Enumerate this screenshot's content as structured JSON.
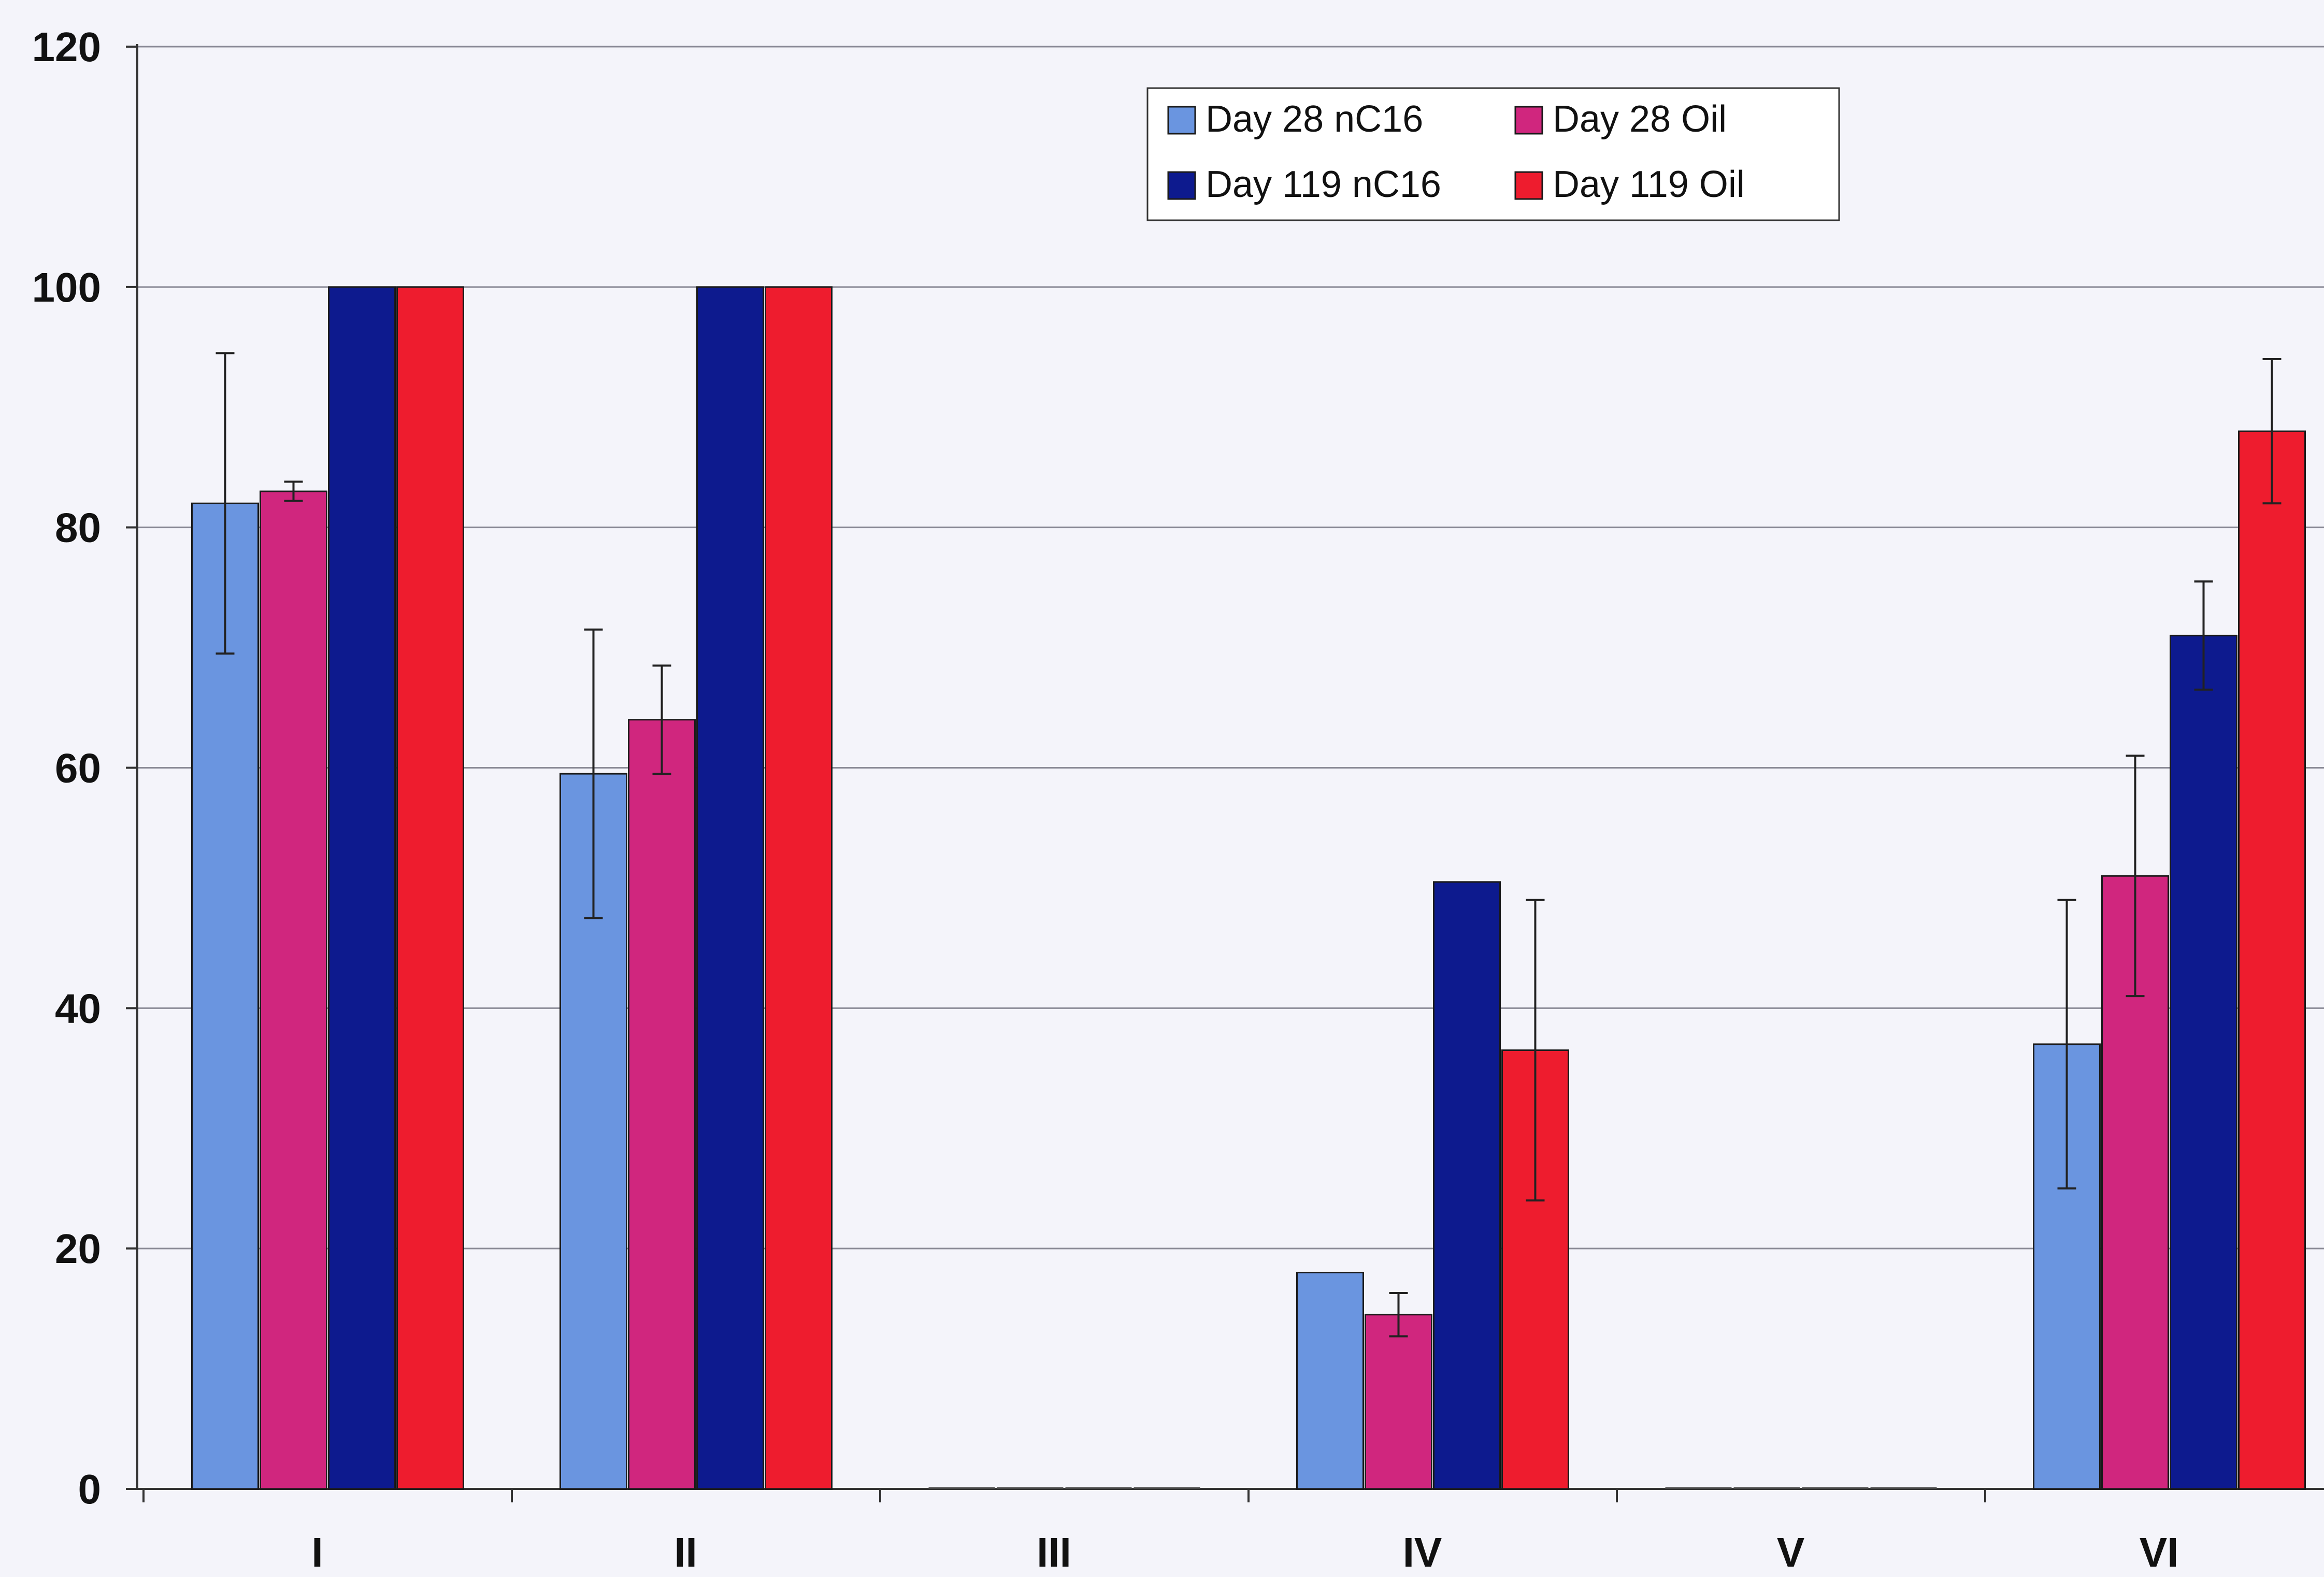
{
  "chart_data": {
    "type": "bar",
    "title": "",
    "xlabel": "",
    "ylabel": "",
    "ylim": [
      0,
      120
    ],
    "yticks": [
      0,
      20,
      40,
      60,
      80,
      100,
      120
    ],
    "grid": true,
    "legend_position": "top-center",
    "categories": [
      "I",
      "II",
      "III",
      "IV",
      "V",
      "VI"
    ],
    "series": [
      {
        "name": "Day 28 nC16",
        "color": "#6a95e0",
        "values": [
          82,
          59.5,
          0,
          18,
          0,
          37
        ],
        "errors": [
          12.5,
          12,
          0,
          0,
          0,
          12
        ]
      },
      {
        "name": "Day 28 Oil",
        "color": "#d0267e",
        "values": [
          83,
          64,
          0,
          14.5,
          0,
          51
        ],
        "errors": [
          0.8,
          4.5,
          0,
          1.8,
          0,
          10
        ]
      },
      {
        "name": "Day 119 nC16",
        "color": "#0d1a8e",
        "values": [
          100,
          100,
          0,
          50.5,
          0,
          71
        ],
        "errors": [
          0,
          0,
          0,
          0,
          0,
          4.5
        ]
      },
      {
        "name": "Day 119 Oil",
        "color": "#ee1c2e",
        "values": [
          100,
          100,
          0,
          36.5,
          0,
          88
        ],
        "errors": [
          0,
          0,
          0,
          12.5,
          0,
          6
        ]
      }
    ]
  }
}
